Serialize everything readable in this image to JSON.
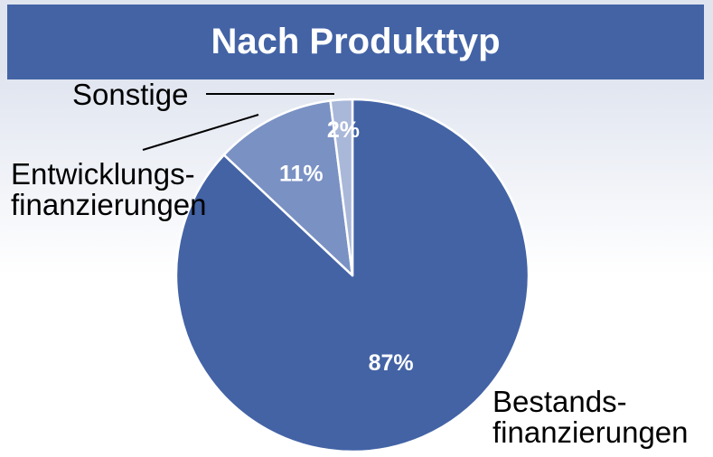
{
  "chart_data": {
    "type": "pie",
    "title": "Nach Produkttyp",
    "categories": [
      "Bestands-\nfinanzierungen",
      "Entwicklungs-\nfinanzierungen",
      "Sonstige"
    ],
    "values": [
      87,
      11,
      2
    ],
    "value_labels": [
      "87%",
      "11%",
      "2%"
    ],
    "colors": [
      "#4363a5",
      "#7a91c4",
      "#a9b7d9"
    ]
  }
}
